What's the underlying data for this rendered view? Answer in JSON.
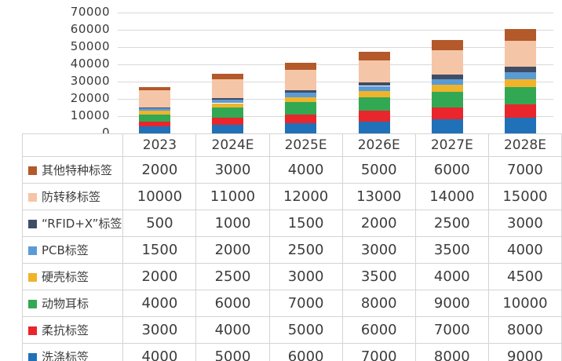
{
  "chart_data": {
    "type": "bar",
    "stacked": true,
    "title": "",
    "xlabel": "",
    "ylabel": "",
    "categories": [
      "2023",
      "2024E",
      "2025E",
      "2026E",
      "2027E",
      "2028E"
    ],
    "series": [
      {
        "name": "其他特种标签",
        "color": "#b3592a",
        "values": [
          2000,
          3000,
          4000,
          5000,
          6000,
          7000
        ]
      },
      {
        "name": "防转移标签",
        "color": "#f5c5a7",
        "values": [
          10000,
          11000,
          12000,
          13000,
          14000,
          15000
        ]
      },
      {
        "name": "“RFID+X”标签",
        "color": "#3f4d66",
        "values": [
          500,
          1000,
          1500,
          2000,
          2500,
          3000
        ]
      },
      {
        "name": "PCB标签",
        "color": "#5b9bd5",
        "values": [
          1500,
          2000,
          2500,
          3000,
          3500,
          4000
        ]
      },
      {
        "name": "硬壳标签",
        "color": "#efb42c",
        "values": [
          2000,
          2500,
          3000,
          3500,
          4000,
          4500
        ]
      },
      {
        "name": "动物耳标",
        "color": "#33a853",
        "values": [
          4000,
          6000,
          7000,
          8000,
          9000,
          10000
        ]
      },
      {
        "name": "柔抗标签",
        "color": "#e8262c",
        "values": [
          3000,
          4000,
          5000,
          6000,
          7000,
          8000
        ]
      },
      {
        "name": "洗涤标签",
        "color": "#2171b8",
        "values": [
          4000,
          5000,
          6000,
          7000,
          8000,
          9000
        ]
      }
    ],
    "stack_order": "bottom-to-top is reverse of series list (洗涤标签 at bottom, 其他特种标签 on top)",
    "ylim": [
      0,
      70000
    ],
    "yticks": [
      0,
      10000,
      20000,
      30000,
      40000,
      50000,
      60000,
      70000
    ],
    "grid": true,
    "legend_position": "table left column below chart"
  },
  "colors": {
    "gridline": "#d9d9d9",
    "table_border": "#d4d4d4",
    "text": "#3c3c3c",
    "background": "#ffffff"
  }
}
